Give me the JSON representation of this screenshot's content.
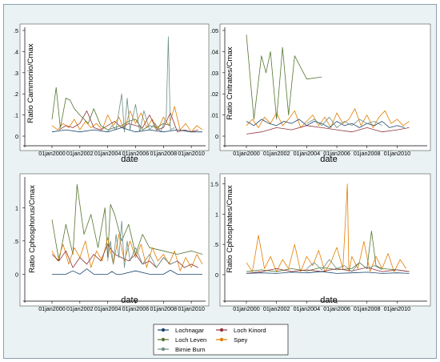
{
  "colors": {
    "Lochnagar": "#1a476f",
    "Loch Kinord": "#90353b",
    "Loch Leven": "#55752f",
    "Spey": "#e37e00",
    "Birnie Burn": "#6e8e84"
  },
  "legend": {
    "placement": "bottom-center",
    "items": [
      "Lochnagar",
      "Loch Kinord",
      "Loch Leven",
      "Spey",
      "Birnie Burn"
    ]
  },
  "chart_data": [
    {
      "type": "line",
      "xlabel": "date",
      "ylabel": "Ratio Cammonio/Cmax",
      "xlim": [
        2000,
        2011.2
      ],
      "ylim": [
        0,
        0.5
      ],
      "x_ticks": [
        "01jan2000",
        "01jan2002",
        "01jan2004",
        "01jan2006",
        "01jan2008",
        "01jan2010"
      ],
      "y_ticks": [
        {
          "v": 0,
          "label": "0"
        },
        {
          "v": 0.1,
          "label": ".1"
        },
        {
          "v": 0.2,
          "label": ".2"
        },
        {
          "v": 0.3,
          "label": ".3"
        },
        {
          "v": 0.4,
          "label": ".4"
        },
        {
          "v": 0.5,
          "label": ".5"
        }
      ],
      "series": [
        {
          "name": "Spey",
          "x": [
            2000.0,
            2000.4,
            2000.8,
            2001.2,
            2001.6,
            2002.0,
            2002.4,
            2002.8,
            2003.2,
            2003.6,
            2004.0,
            2004.4,
            2004.8,
            2005.2,
            2005.6,
            2006.0,
            2006.4,
            2006.8,
            2007.2,
            2007.6,
            2008.0,
            2008.4,
            2008.8,
            2009.2,
            2009.6,
            2010.0,
            2010.4,
            2010.8
          ],
          "y": [
            0.05,
            0.03,
            0.06,
            0.04,
            0.08,
            0.03,
            0.07,
            0.04,
            0.06,
            0.03,
            0.1,
            0.05,
            0.09,
            0.03,
            0.12,
            0.06,
            0.11,
            0.04,
            0.08,
            0.03,
            0.09,
            0.05,
            0.14,
            0.03,
            0.06,
            0.02,
            0.05,
            0.03
          ]
        },
        {
          "name": "Loch Kinord",
          "x": [
            2000.5,
            2001.0,
            2001.5,
            2002.0,
            2002.5,
            2003.0,
            2003.5,
            2004.0,
            2004.5,
            2005.0,
            2005.5,
            2006.0,
            2006.5,
            2007.0,
            2007.5,
            2008.0,
            2008.5,
            2009.0,
            2009.5,
            2010.0,
            2010.5
          ],
          "y": [
            0.03,
            0.05,
            0.04,
            0.06,
            0.12,
            0.04,
            0.03,
            0.05,
            0.07,
            0.04,
            0.06,
            0.05,
            0.04,
            0.1,
            0.03,
            0.04,
            0.11,
            0.02,
            0.03,
            0.02,
            0.03
          ]
        },
        {
          "name": "Loch Leven",
          "x": [
            2000.0,
            2000.3,
            2000.6,
            2001.0,
            2001.3,
            2001.6,
            2002.0,
            2002.6,
            2003.0,
            2003.5,
            2004.0,
            2004.5,
            2005.0,
            2005.5,
            2006.0,
            2006.5,
            2007.0,
            2007.5,
            2008.0,
            2008.5
          ],
          "y": [
            0.08,
            0.23,
            0.04,
            0.18,
            0.17,
            0.13,
            0.1,
            0.06,
            0.13,
            0.05,
            0.03,
            0.04,
            0.05,
            0.07,
            0.08,
            0.03,
            0.05,
            0.04,
            0.06,
            0.05
          ]
        },
        {
          "name": "Birnie Burn",
          "x": [
            2004.0,
            2004.3,
            2004.6,
            2005.0,
            2005.2,
            2005.4,
            2005.6,
            2006.0,
            2006.3,
            2006.6,
            2007.0,
            2007.4,
            2007.8,
            2008.2,
            2008.35,
            2008.5,
            2008.8
          ],
          "y": [
            0.02,
            0.05,
            0.03,
            0.2,
            0.02,
            0.18,
            0.03,
            0.15,
            0.02,
            0.12,
            0.03,
            0.06,
            0.02,
            0.09,
            0.47,
            0.03,
            0.04
          ]
        },
        {
          "name": "Lochnagar",
          "x": [
            2000.0,
            2001.0,
            2002.0,
            2003.0,
            2004.0,
            2005.0,
            2006.0,
            2007.0,
            2008.0,
            2009.0,
            2010.0,
            2010.8
          ],
          "y": [
            0.02,
            0.03,
            0.02,
            0.03,
            0.02,
            0.04,
            0.02,
            0.03,
            0.02,
            0.03,
            0.02,
            0.02
          ]
        }
      ]
    },
    {
      "type": "line",
      "xlabel": "date",
      "ylabel": "Ratio Cnitrates/Cmax",
      "xlim": [
        2000,
        2011.2
      ],
      "ylim": [
        0,
        0.05
      ],
      "x_ticks": [
        "01jan2000",
        "01jan2002",
        "01jan2004",
        "01jan2006",
        "01jan2008",
        "01jan2010"
      ],
      "y_ticks": [
        {
          "v": 0,
          "label": "0"
        },
        {
          "v": 0.01,
          "label": ".01"
        },
        {
          "v": 0.02,
          "label": ".02"
        },
        {
          "v": 0.03,
          "label": ".03"
        },
        {
          "v": 0.04,
          "label": ".04"
        },
        {
          "v": 0.05,
          "label": ".05"
        }
      ],
      "series": [
        {
          "name": "Spey",
          "x": [
            2000.0,
            2000.4,
            2000.8,
            2001.2,
            2001.6,
            2002.0,
            2002.4,
            2002.8,
            2003.2,
            2003.6,
            2004.0,
            2004.4,
            2004.8,
            2005.2,
            2005.6,
            2006.0,
            2006.4,
            2006.8,
            2007.2,
            2007.6,
            2008.0,
            2008.4,
            2008.8,
            2009.2,
            2009.6,
            2010.0,
            2010.4,
            2010.8
          ],
          "y": [
            0.005,
            0.008,
            0.004,
            0.009,
            0.006,
            0.011,
            0.005,
            0.008,
            0.012,
            0.004,
            0.007,
            0.01,
            0.005,
            0.009,
            0.004,
            0.011,
            0.006,
            0.008,
            0.013,
            0.005,
            0.01,
            0.004,
            0.009,
            0.012,
            0.006,
            0.008,
            0.005,
            0.007
          ]
        },
        {
          "name": "Loch Kinord",
          "x": [
            2000.0,
            2001.0,
            2002.0,
            2003.0,
            2004.0,
            2005.0,
            2006.0,
            2007.0,
            2008.0,
            2009.0,
            2010.0,
            2010.8
          ],
          "y": [
            0.001,
            0.002,
            0.004,
            0.003,
            0.005,
            0.004,
            0.003,
            0.002,
            0.004,
            0.002,
            0.003,
            0.004
          ]
        },
        {
          "name": "Loch Leven",
          "x": [
            2000.0,
            2000.5,
            2001.0,
            2001.3,
            2001.6,
            2002.0,
            2002.4,
            2002.8,
            2003.2,
            2004.0,
            2005.0
          ],
          "y": [
            0.048,
            0.008,
            0.038,
            0.03,
            0.04,
            0.008,
            0.042,
            0.01,
            0.038,
            0.027,
            0.028
          ]
        },
        {
          "name": "Lochnagar",
          "x": [
            2000.0,
            2000.5,
            2001.0,
            2001.5,
            2002.0,
            2002.5,
            2003.0,
            2003.5,
            2004.0,
            2004.5,
            2005.0,
            2005.5,
            2006.0,
            2006.5,
            2007.0,
            2007.5,
            2008.0,
            2008.5,
            2009.0,
            2009.5,
            2010.0,
            2010.5
          ],
          "y": [
            0.007,
            0.005,
            0.008,
            0.006,
            0.005,
            0.007,
            0.006,
            0.008,
            0.005,
            0.007,
            0.006,
            0.004,
            0.007,
            0.005,
            0.006,
            0.004,
            0.006,
            0.005,
            0.007,
            0.004,
            0.005,
            0.004
          ]
        },
        {
          "name": "Birnie Burn",
          "x": [
            2004.0,
            2004.5,
            2005.0,
            2005.5,
            2006.0,
            2006.5,
            2007.0,
            2007.5,
            2008.0,
            2008.5,
            2009.0
          ],
          "y": [
            0.006,
            0.008,
            0.005,
            0.009,
            0.004,
            0.007,
            0.005,
            0.008,
            0.006,
            0.007,
            0.005
          ]
        }
      ]
    },
    {
      "type": "line",
      "xlabel": "date",
      "ylabel": "Ratio Cphosphorus/Cmax",
      "xlim": [
        2000,
        2011.2
      ],
      "ylim": [
        -0.08,
        1.45
      ],
      "x_ticks": [
        "01jan2000",
        "01jan2002",
        "01jan2004",
        "01jan2006",
        "01jan2008",
        "01jan2010"
      ],
      "y_ticks": [
        {
          "v": 0,
          "label": "0"
        },
        {
          "v": 0.5,
          "label": ".5"
        },
        {
          "v": 1,
          "label": "1"
        }
      ],
      "series": [
        {
          "name": "Loch Leven",
          "x": [
            2000.0,
            2000.5,
            2001.0,
            2001.5,
            2001.8,
            2002.3,
            2002.8,
            2003.3,
            2003.8,
            2004.0,
            2004.2,
            2004.5,
            2005.0,
            2005.5,
            2006.0,
            2006.5,
            2007.0,
            2008.0,
            2009.0,
            2010.0,
            2010.8
          ],
          "y": [
            0.82,
            0.2,
            0.75,
            0.3,
            1.35,
            0.6,
            0.9,
            0.4,
            1.0,
            0.25,
            1.05,
            0.9,
            0.5,
            0.75,
            0.3,
            0.6,
            0.4,
            0.35,
            0.3,
            0.35,
            0.3
          ]
        },
        {
          "name": "Spey",
          "x": [
            2000.0,
            2000.4,
            2000.8,
            2001.2,
            2001.6,
            2002.0,
            2002.4,
            2002.8,
            2003.2,
            2003.6,
            2004.0,
            2004.4,
            2004.8,
            2005.2,
            2005.6,
            2006.0,
            2006.4,
            2006.8,
            2007.2,
            2007.6,
            2008.0,
            2008.4,
            2008.8,
            2009.2,
            2009.6,
            2010.0,
            2010.4,
            2010.8
          ],
          "y": [
            0.35,
            0.2,
            0.45,
            0.15,
            0.4,
            0.25,
            0.5,
            0.1,
            0.35,
            0.2,
            0.55,
            0.15,
            0.6,
            0.2,
            0.5,
            0.25,
            0.45,
            0.1,
            0.4,
            0.2,
            0.3,
            0.15,
            0.35,
            0.05,
            0.25,
            0.1,
            0.3,
            0.15
          ]
        },
        {
          "name": "Loch Kinord",
          "x": [
            2000.0,
            2000.5,
            2001.0,
            2001.5,
            2002.0,
            2002.5,
            2003.0,
            2003.5,
            2004.0,
            2004.5,
            2005.0,
            2005.5,
            2006.0,
            2006.5,
            2007.0,
            2007.5,
            2008.0,
            2008.5,
            2009.0,
            2009.5,
            2010.0,
            2010.5
          ],
          "y": [
            0.3,
            0.2,
            0.35,
            0.1,
            0.25,
            0.15,
            0.3,
            0.2,
            0.45,
            0.3,
            0.25,
            0.2,
            0.3,
            0.15,
            0.2,
            0.1,
            0.25,
            0.15,
            0.2,
            0.1,
            0.15,
            0.1
          ]
        },
        {
          "name": "Birnie Burn",
          "x": [
            2004.0,
            2004.2,
            2004.4,
            2004.6,
            2004.8,
            2005.0,
            2005.2,
            2005.4,
            2005.6,
            2006.0,
            2006.5,
            2007.0,
            2007.5,
            2008.0,
            2008.5,
            2009.0
          ],
          "y": [
            0.2,
            0.5,
            0.15,
            0.6,
            0.25,
            0.8,
            0.1,
            0.5,
            0.2,
            0.4,
            0.15,
            0.3,
            0.1,
            0.25,
            0.15,
            0.2
          ]
        },
        {
          "name": "Lochnagar",
          "x": [
            2000.0,
            2001.0,
            2001.5,
            2002.0,
            2002.5,
            2003.0,
            2004.0,
            2004.3,
            2004.6,
            2005.0,
            2006.0,
            2007.0,
            2008.0,
            2008.5,
            2009.0,
            2010.0,
            2010.8
          ],
          "y": [
            0.0,
            0.0,
            0.05,
            0.0,
            0.08,
            0.0,
            0.0,
            0.04,
            0.0,
            0.0,
            0.05,
            0.0,
            0.0,
            0.06,
            0.0,
            0.0,
            0.0
          ]
        }
      ]
    },
    {
      "type": "line",
      "xlabel": "date",
      "ylabel": "Ratio Cphosphates/Cmax",
      "xlim": [
        2000,
        2011.2
      ],
      "ylim": [
        -0.08,
        1.6
      ],
      "x_ticks": [
        "01jan2000",
        "01jan2002",
        "01jan2004",
        "01jan2006",
        "01jan2008",
        "01jan2010"
      ],
      "y_ticks": [
        {
          "v": 0,
          "label": "0"
        },
        {
          "v": 0.5,
          "label": ".5"
        },
        {
          "v": 1,
          "label": "1"
        },
        {
          "v": 1.5,
          "label": "1.5"
        }
      ],
      "series": [
        {
          "name": "Spey",
          "x": [
            2000.0,
            2000.4,
            2000.8,
            2001.2,
            2001.6,
            2002.0,
            2002.4,
            2002.8,
            2003.2,
            2003.6,
            2004.0,
            2004.4,
            2004.8,
            2005.2,
            2005.6,
            2006.0,
            2006.4,
            2006.7,
            2006.8,
            2007.0,
            2007.4,
            2007.8,
            2008.2,
            2008.6,
            2009.0,
            2009.4,
            2009.8,
            2010.2,
            2010.6
          ],
          "y": [
            0.2,
            0.05,
            0.65,
            0.1,
            0.3,
            0.05,
            0.25,
            0.1,
            0.5,
            0.05,
            0.3,
            0.15,
            0.4,
            0.05,
            0.2,
            0.45,
            0.1,
            1.5,
            0.05,
            0.3,
            0.1,
            0.55,
            0.05,
            0.3,
            0.1,
            0.35,
            0.05,
            0.25,
            0.1
          ]
        },
        {
          "name": "Loch Leven",
          "x": [
            2000.0,
            2001.0,
            2002.0,
            2003.0,
            2004.0,
            2005.0,
            2006.0,
            2007.0,
            2007.5,
            2008.0,
            2008.3,
            2008.6,
            2009.0,
            2010.0,
            2010.8
          ],
          "y": [
            0.05,
            0.08,
            0.05,
            0.1,
            0.06,
            0.12,
            0.08,
            0.1,
            0.2,
            0.1,
            0.72,
            0.15,
            0.1,
            0.08,
            0.05
          ]
        },
        {
          "name": "Loch Kinord",
          "x": [
            2000.0,
            2001.0,
            2002.0,
            2003.0,
            2004.0,
            2005.0,
            2006.0,
            2007.0,
            2008.0,
            2009.0,
            2010.0,
            2010.8
          ],
          "y": [
            0.02,
            0.05,
            0.1,
            0.05,
            0.08,
            0.05,
            0.1,
            0.06,
            0.12,
            0.05,
            0.08,
            0.05
          ]
        },
        {
          "name": "Birnie Burn",
          "x": [
            2004.0,
            2004.5,
            2005.0,
            2005.5,
            2006.0,
            2006.5,
            2007.0,
            2007.5,
            2008.0,
            2008.5,
            2009.0
          ],
          "y": [
            0.1,
            0.2,
            0.08,
            0.25,
            0.1,
            0.15,
            0.05,
            0.2,
            0.1,
            0.15,
            0.08
          ]
        },
        {
          "name": "Lochnagar",
          "x": [
            2000.0,
            2001.0,
            2002.0,
            2003.0,
            2004.0,
            2005.0,
            2006.0,
            2007.0,
            2008.0,
            2009.0,
            2010.0,
            2010.8
          ],
          "y": [
            0.02,
            0.03,
            0.02,
            0.04,
            0.03,
            0.05,
            0.02,
            0.03,
            0.04,
            0.02,
            0.03,
            0.02
          ]
        }
      ]
    }
  ]
}
